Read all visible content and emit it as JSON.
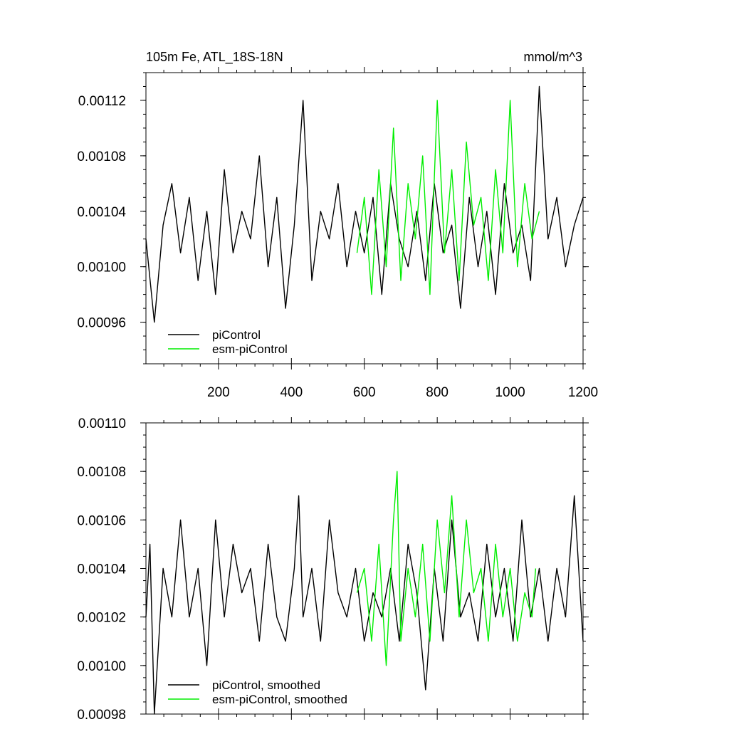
{
  "chart_data": [
    {
      "type": "line",
      "title": "105m Fe, ATL_18S-18N",
      "units": "mmol/m^3",
      "xlim": [
        1,
        1200
      ],
      "ylim": [
        0.00093,
        0.00114
      ],
      "x_ticks": [
        200,
        400,
        600,
        800,
        1000,
        1200
      ],
      "x_tick_labels": [
        "200",
        "400",
        "600",
        "800",
        "1000",
        "1200"
      ],
      "y_ticks": [
        0.00096,
        0.001,
        0.00104,
        0.00108,
        0.00112
      ],
      "y_tick_labels": [
        "0.00096",
        "0.00100",
        "0.00104",
        "0.00108",
        "0.00112"
      ],
      "grid": false,
      "legend_position": "bottom-left",
      "colors": {
        "piControl": "#000000",
        "esm-piControl": "#00ee00"
      },
      "series": [
        {
          "name": "piControl",
          "x": [
            1,
            24,
            48,
            72,
            96,
            120,
            144,
            168,
            192,
            216,
            240,
            264,
            288,
            312,
            336,
            360,
            384,
            408,
            432,
            456,
            480,
            504,
            528,
            552,
            576,
            600,
            624,
            648,
            672,
            696,
            720,
            744,
            768,
            792,
            816,
            840,
            864,
            888,
            912,
            936,
            960,
            984,
            1008,
            1032,
            1056,
            1080,
            1104,
            1128,
            1152,
            1176,
            1200
          ],
          "y": [
            0.00102,
            0.00096,
            0.00103,
            0.00106,
            0.00101,
            0.00105,
            0.00099,
            0.00104,
            0.00098,
            0.00107,
            0.00101,
            0.00104,
            0.00102,
            0.00108,
            0.001,
            0.00105,
            0.00097,
            0.00103,
            0.00112,
            0.00099,
            0.00104,
            0.00102,
            0.00106,
            0.001,
            0.00104,
            0.00101,
            0.00105,
            0.00098,
            0.00106,
            0.00102,
            0.001,
            0.00104,
            0.00099,
            0.00106,
            0.00101,
            0.00103,
            0.00097,
            0.00105,
            0.001,
            0.00104,
            0.00098,
            0.00106,
            0.00101,
            0.00103,
            0.00099,
            0.00113,
            0.00102,
            0.00105,
            0.001,
            0.00103,
            0.00105
          ]
        },
        {
          "name": "esm-piControl",
          "x": [
            580,
            600,
            620,
            640,
            660,
            680,
            700,
            720,
            740,
            760,
            780,
            800,
            820,
            840,
            860,
            880,
            900,
            920,
            940,
            960,
            980,
            1000,
            1020,
            1040,
            1060,
            1080
          ],
          "y": [
            0.00101,
            0.00105,
            0.00098,
            0.00107,
            0.001,
            0.0011,
            0.00099,
            0.00106,
            0.00102,
            0.00108,
            0.00098,
            0.00112,
            0.00101,
            0.00107,
            0.00099,
            0.00109,
            0.00103,
            0.00105,
            0.00099,
            0.00107,
            0.00101,
            0.00112,
            0.001,
            0.00106,
            0.00102,
            0.00104
          ]
        }
      ]
    },
    {
      "type": "line",
      "xlim": [
        1,
        1200
      ],
      "ylim": [
        0.00098,
        0.0011
      ],
      "x_ticks": [
        200,
        400,
        600,
        800,
        1000,
        1200
      ],
      "y_ticks": [
        0.00098,
        0.001,
        0.00102,
        0.00104,
        0.00106,
        0.00108,
        0.0011
      ],
      "y_tick_labels": [
        "0.00098",
        "0.00100",
        "0.00102",
        "0.00104",
        "0.00106",
        "0.00108",
        "0.00110"
      ],
      "grid": false,
      "legend_position": "bottom-left",
      "colors": {
        "piControl, smoothed": "#000000",
        "esm-piControl, smoothed": "#00ee00"
      },
      "series": [
        {
          "name": "piControl, smoothed",
          "x": [
            1,
            12,
            24,
            48,
            72,
            96,
            120,
            144,
            168,
            192,
            216,
            240,
            264,
            288,
            312,
            336,
            360,
            384,
            408,
            420,
            432,
            456,
            480,
            504,
            528,
            552,
            576,
            600,
            624,
            648,
            672,
            696,
            720,
            744,
            768,
            792,
            816,
            840,
            864,
            888,
            912,
            936,
            960,
            984,
            1008,
            1032,
            1056,
            1080,
            1104,
            1128,
            1152,
            1176,
            1200
          ],
          "y": [
            0.00102,
            0.00105,
            0.00098,
            0.00104,
            0.00102,
            0.00106,
            0.00102,
            0.00104,
            0.001,
            0.00106,
            0.00102,
            0.00105,
            0.00103,
            0.00104,
            0.00101,
            0.00105,
            0.00102,
            0.00101,
            0.00104,
            0.00107,
            0.00102,
            0.00104,
            0.00101,
            0.00106,
            0.00103,
            0.00102,
            0.00104,
            0.00101,
            0.00103,
            0.00102,
            0.00104,
            0.00101,
            0.00105,
            0.00103,
            0.00099,
            0.00104,
            0.00101,
            0.00106,
            0.00102,
            0.00103,
            0.00101,
            0.00105,
            0.00102,
            0.00104,
            0.00101,
            0.00106,
            0.00102,
            0.00104,
            0.00101,
            0.00104,
            0.00102,
            0.00107,
            0.00101
          ]
        },
        {
          "name": "esm-piControl, smoothed",
          "x": [
            580,
            600,
            620,
            640,
            660,
            680,
            690,
            700,
            720,
            740,
            760,
            780,
            800,
            820,
            840,
            860,
            880,
            900,
            920,
            940,
            960,
            980,
            1000,
            1020,
            1040,
            1060,
            1070
          ],
          "y": [
            0.00103,
            0.00104,
            0.00101,
            0.00105,
            0.001,
            0.00106,
            0.00108,
            0.00101,
            0.00104,
            0.00102,
            0.00105,
            0.00101,
            0.00106,
            0.00103,
            0.00107,
            0.00102,
            0.00106,
            0.00103,
            0.00104,
            0.00101,
            0.00105,
            0.00102,
            0.00104,
            0.00101,
            0.00103,
            0.00102,
            0.00104
          ]
        }
      ]
    }
  ]
}
